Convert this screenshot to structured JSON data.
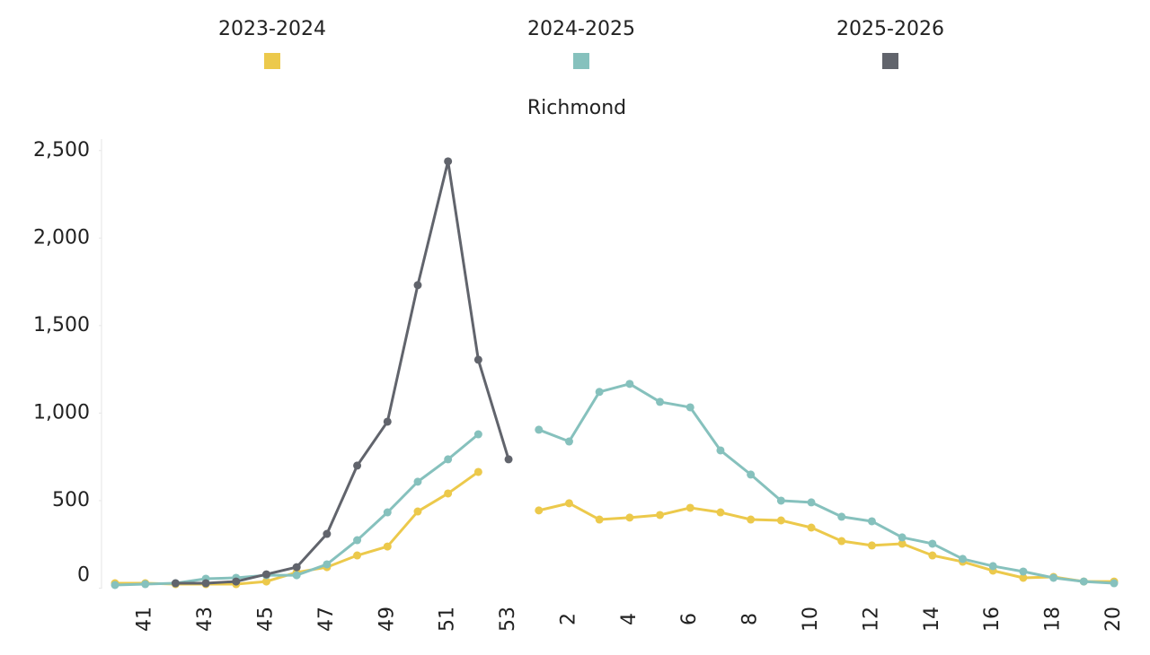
{
  "chart_data": {
    "type": "line",
    "title": "Richmond",
    "categories": [
      null,
      41,
      null,
      43,
      null,
      45,
      null,
      47,
      null,
      49,
      null,
      51,
      null,
      53,
      null,
      2,
      null,
      4,
      null,
      6,
      null,
      8,
      null,
      10,
      null,
      12,
      null,
      14,
      null,
      16,
      null,
      18,
      null,
      20
    ],
    "series": [
      {
        "name": "2023-2024",
        "color": "#ecc94b",
        "values": [
          28,
          28,
          23,
          23,
          23,
          38,
          90,
          120,
          187,
          238,
          438,
          541,
          664,
          null,
          444,
          485,
          392,
          403,
          418,
          459,
          433,
          392,
          387,
          346,
          269,
          244,
          254,
          187,
          151,
          100,
          59,
          64,
          38,
          38
        ]
      },
      {
        "name": "2024-2025",
        "color": "#86c1bd",
        "values": [
          18,
          23,
          28,
          54,
          59,
          74,
          74,
          136,
          274,
          433,
          608,
          736,
          879,
          null,
          905,
          838,
          1121,
          1167,
          1064,
          1033,
          787,
          649,
          500,
          490,
          408,
          382,
          290,
          254,
          167,
          126,
          95,
          59,
          38,
          28
        ]
      },
      {
        "name": "2025-2026",
        "color": "#61646c",
        "values": [
          null,
          null,
          28,
          28,
          38,
          79,
          120,
          310,
          700,
          951,
          1731,
          2438,
          1305,
          736,
          null,
          null,
          null,
          null,
          null,
          null,
          null,
          null,
          null,
          null,
          null,
          null,
          null,
          null,
          null,
          null,
          null,
          null,
          null,
          null
        ]
      }
    ],
    "ylim": [
      0,
      2550
    ],
    "yticks": [
      0,
      {
        "value": 500,
        "label": "500"
      },
      {
        "value": 1000,
        "label": "1,000"
      },
      {
        "value": 1500,
        "label": "1,500"
      },
      {
        "value": 2000,
        "label": "2,000"
      },
      {
        "value": 2500,
        "label": "2,500"
      }
    ]
  }
}
